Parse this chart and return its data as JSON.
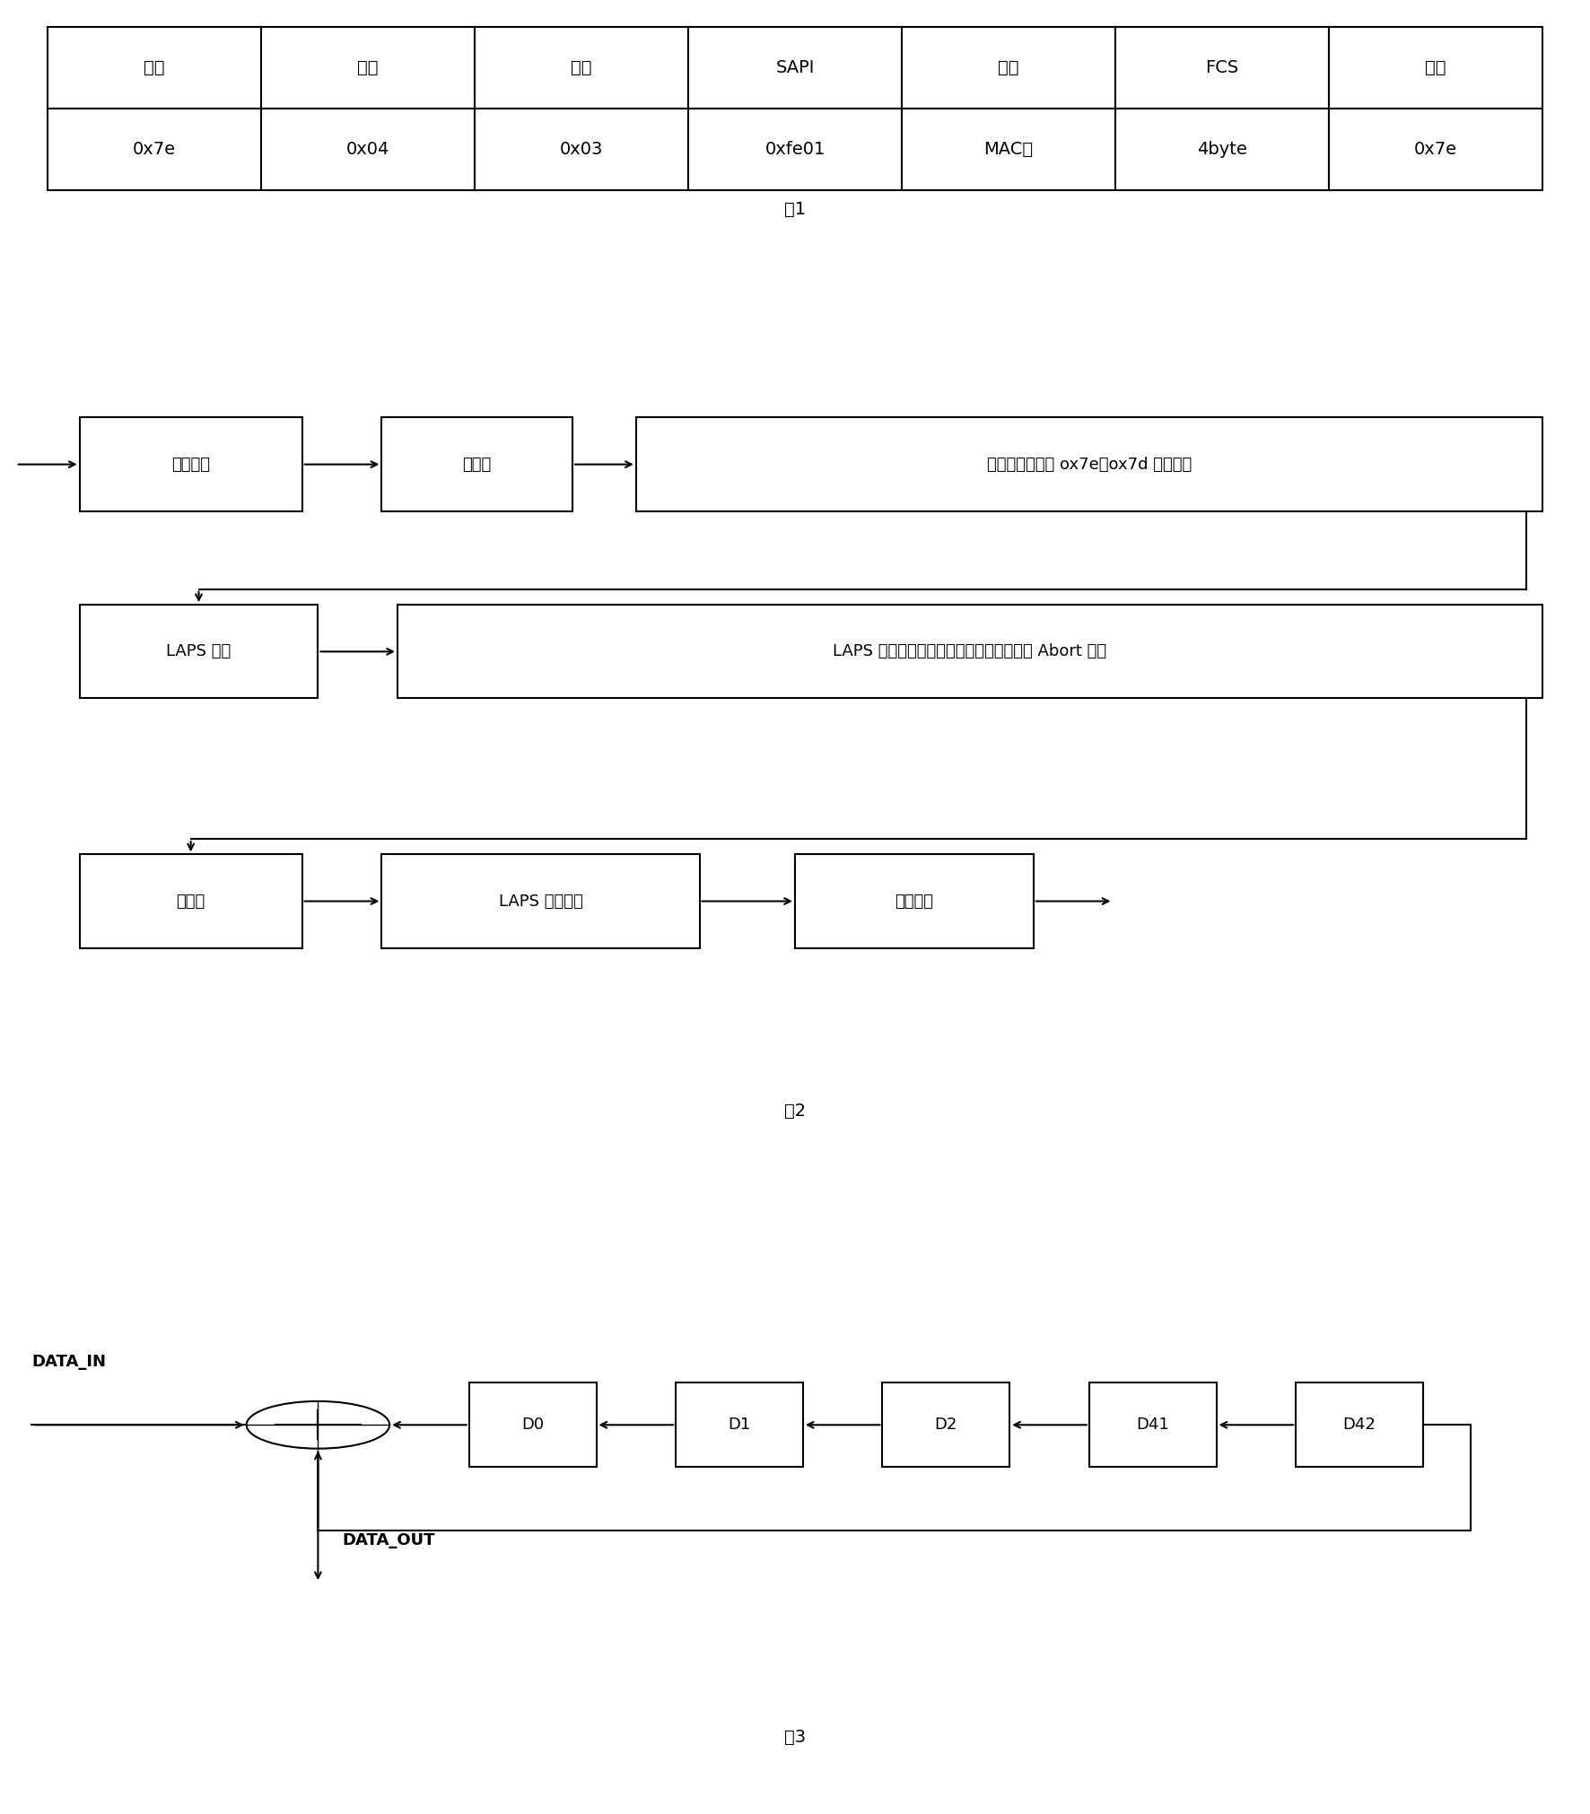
{
  "fig_width": 17.72,
  "fig_height": 20.22,
  "bg_color": "#ffffff",
  "table1": {
    "headers": [
      "标志",
      "地址",
      "控制",
      "SAPI",
      "数据",
      "FCS",
      "标志"
    ],
    "values": [
      "0x7e",
      "0x04",
      "0x03",
      "0xfe01",
      "MAC帧",
      "4byte",
      "0x7e"
    ],
    "caption": "图1"
  },
  "fig2": {
    "caption": "图2",
    "row1": {
      "box1": "输入接口",
      "box2": "解扰码",
      "box3": "遍历所有字节对 ox7e、ox7d 等做标识"
    },
    "row2": {
      "box1": "LAPS 定帧",
      "box2": "LAPS 转义处理、丢弃速率适配字段、检测 Abort 字段"
    },
    "row3": {
      "box1": "帧校验",
      "box2": "LAPS 净荷提取",
      "box3": "输出接口"
    }
  },
  "fig3": {
    "caption": "图3",
    "boxes_d": [
      "D0",
      "D1",
      "D2",
      "D41",
      "D42"
    ],
    "data_in_label": "DATA_IN",
    "data_out_label": "DATA_OUT"
  },
  "font_size_table": 14,
  "font_size_box": 13,
  "font_size_caption": 14
}
